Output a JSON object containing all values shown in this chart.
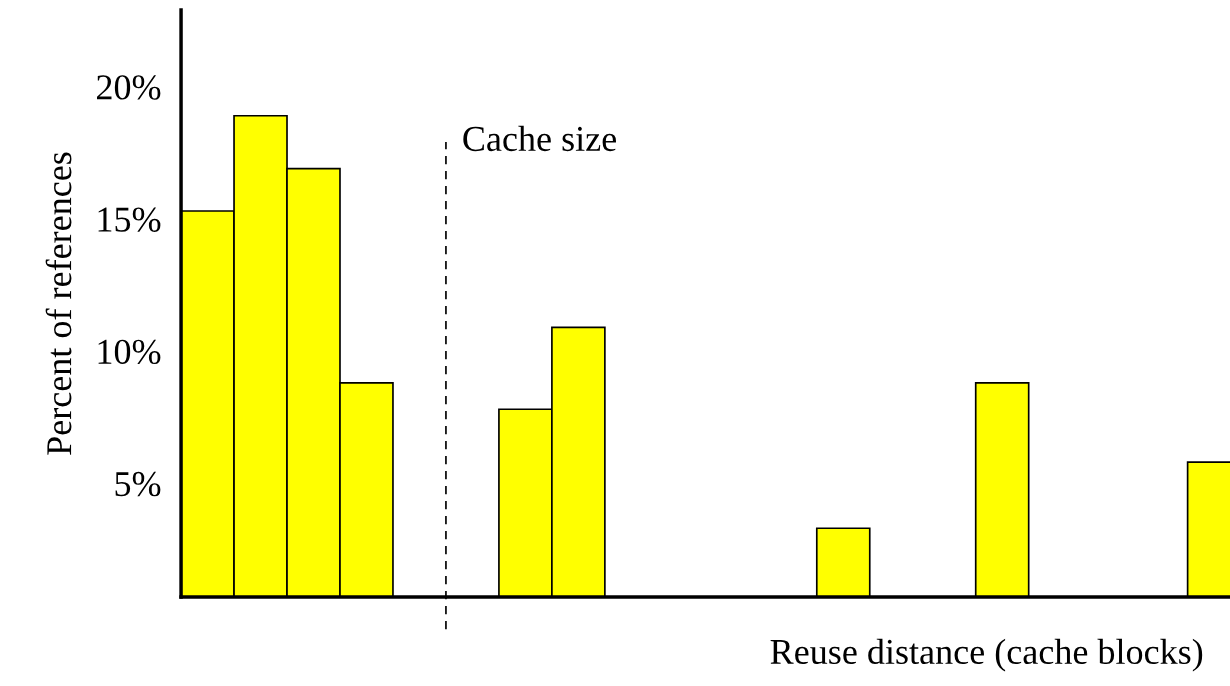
{
  "chart_data": {
    "type": "bar",
    "xlabel": "Reuse distance (cache blocks)",
    "ylabel": "Percent of references",
    "categories": [
      null,
      null,
      null,
      null,
      null,
      null,
      null,
      null,
      null,
      null,
      null,
      null,
      null,
      null,
      null,
      null,
      null,
      null,
      null,
      null
    ],
    "values": [
      15.3,
      18.9,
      16.9,
      8.8,
      null,
      null,
      7.8,
      10.9,
      null,
      null,
      null,
      null,
      3.3,
      null,
      null,
      8.8,
      null,
      null,
      null,
      5.8
    ],
    "color": "#ffff00",
    "ylim": [
      0.7,
      22.9
    ],
    "yticks": [
      {
        "value": 5,
        "label": "5%"
      },
      {
        "value": 10,
        "label": "10%"
      },
      {
        "value": 15,
        "label": "15%"
      },
      {
        "value": 20,
        "label": "20%"
      }
    ],
    "annotations": [
      "Cache size"
    ],
    "grid": false,
    "legend": false
  }
}
